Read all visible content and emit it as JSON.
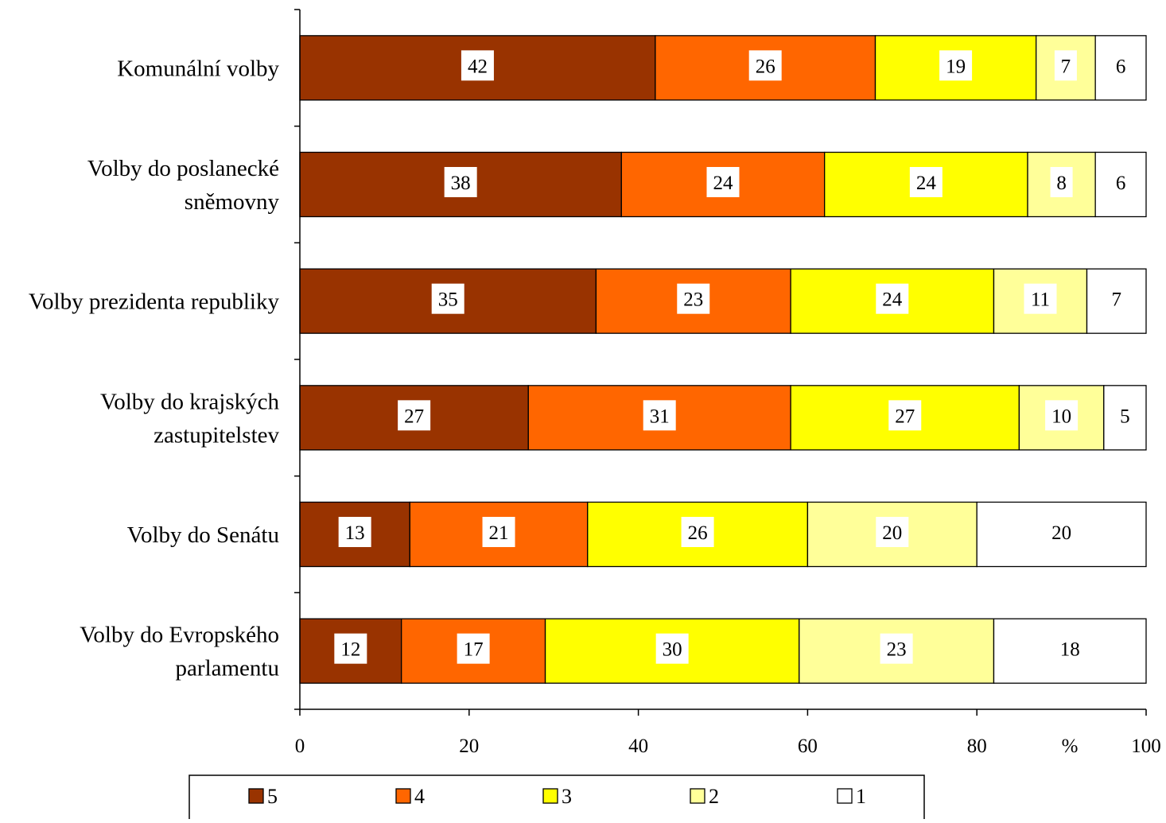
{
  "chart_data": {
    "type": "bar",
    "orientation": "horizontal",
    "stacked": true,
    "categories": [
      "Komunální volby",
      "Volby do poslanecké sněmovny",
      "Volby prezidenta republiky",
      "Volby do krajských zastupitelstev",
      "Volby do Senátu",
      "Volby do Evropského parlamentu"
    ],
    "category_label_lines": [
      [
        "Komunální volby"
      ],
      [
        "Volby do poslanecké",
        "sněmovny"
      ],
      [
        "Volby prezidenta republiky"
      ],
      [
        "Volby do krajských",
        "zastupitelstev"
      ],
      [
        "Volby do Senátu"
      ],
      [
        "Volby do Evropského",
        "parlamentu"
      ]
    ],
    "series": [
      {
        "name": "5",
        "color": "#993300",
        "values": [
          42,
          38,
          35,
          27,
          13,
          12
        ]
      },
      {
        "name": "4",
        "color": "#FF6600",
        "values": [
          26,
          24,
          23,
          31,
          21,
          17
        ]
      },
      {
        "name": "3",
        "color": "#FFFF00",
        "values": [
          19,
          24,
          24,
          27,
          26,
          30
        ]
      },
      {
        "name": "2",
        "color": "#FFFF99",
        "values": [
          7,
          8,
          11,
          10,
          20,
          23
        ]
      },
      {
        "name": "1",
        "color": "#FFFFFF",
        "values": [
          6,
          6,
          7,
          5,
          20,
          18
        ]
      }
    ],
    "xlabel": "%",
    "xlim": [
      0,
      100
    ],
    "x_ticks": [
      0,
      20,
      40,
      60,
      80,
      100
    ],
    "x_tick_labels": [
      "0",
      "20",
      "40",
      "60",
      "80",
      "100"
    ],
    "grid": false,
    "data_labels": true,
    "legend_placement": "bottom"
  }
}
